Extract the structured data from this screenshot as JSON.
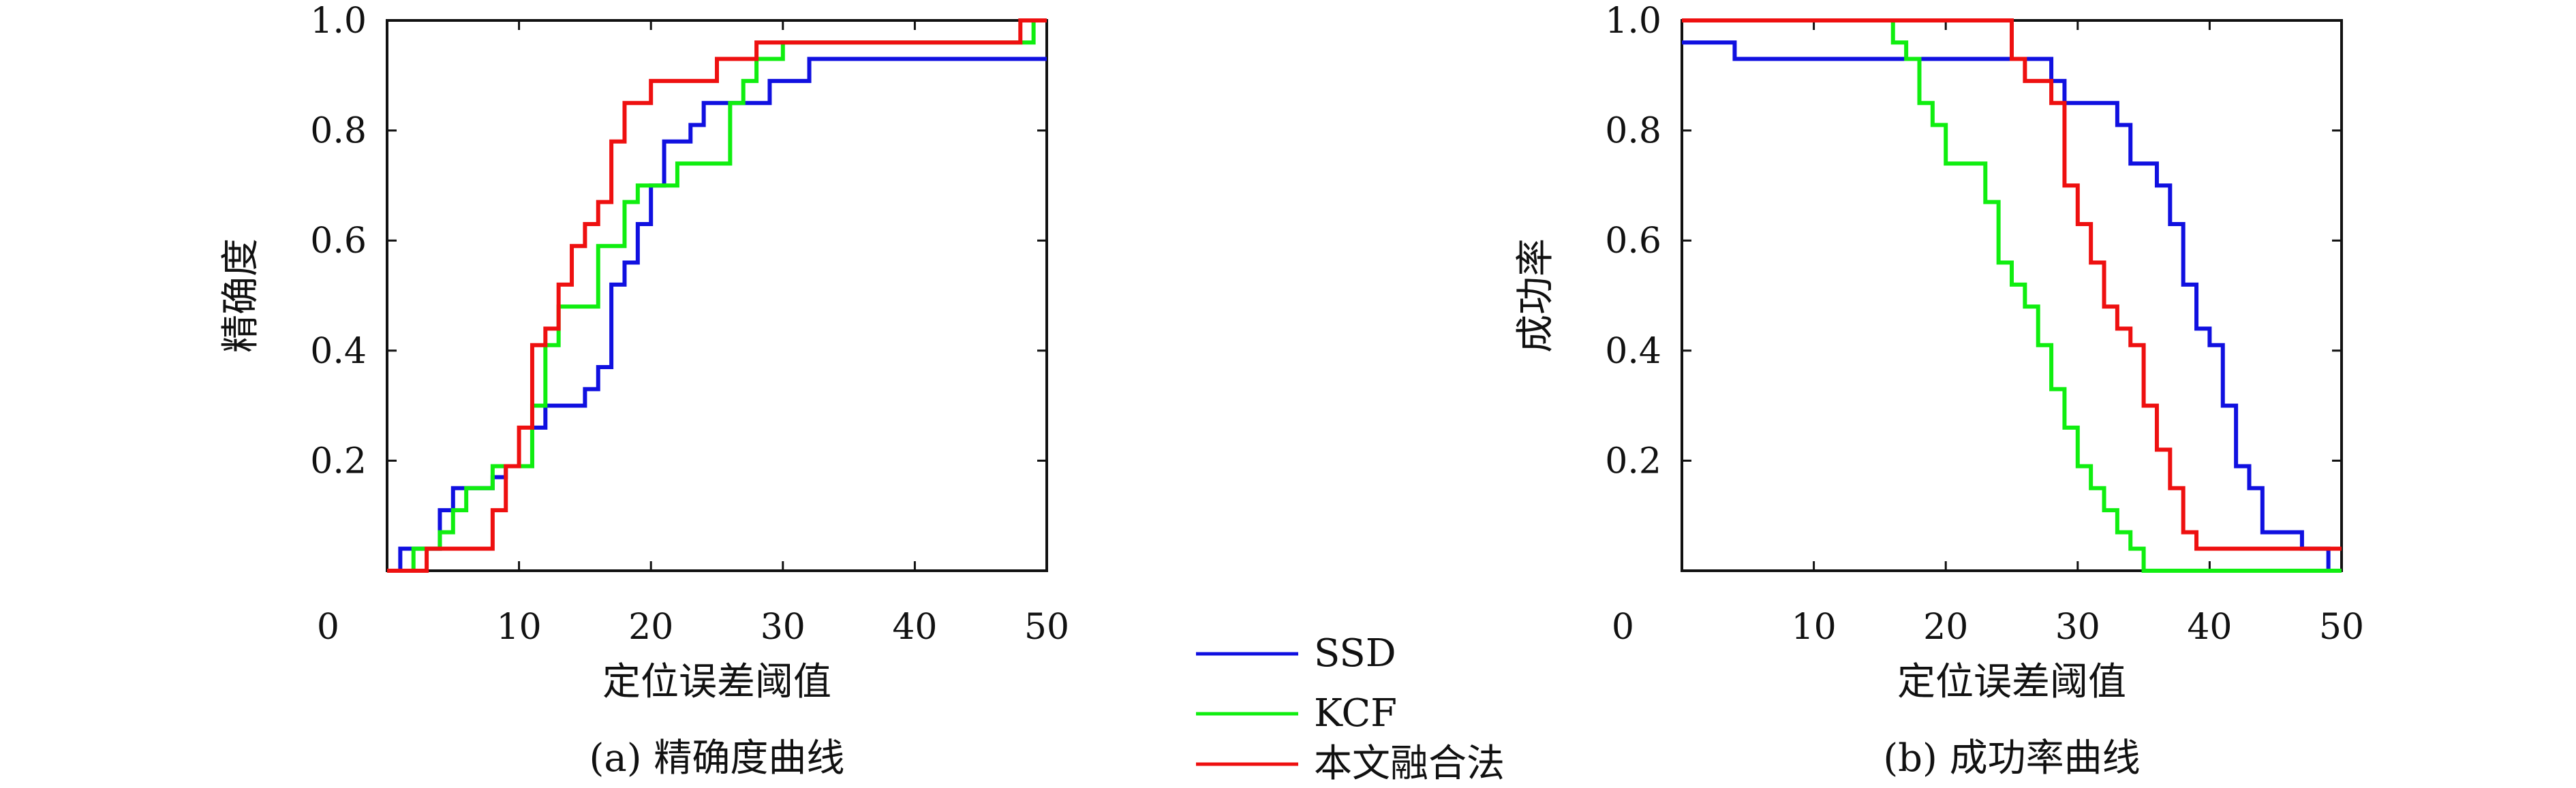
{
  "colors": {
    "ssd": "#1010e0",
    "kcf": "#10ee10",
    "ours": "#ee1010",
    "axis": "#111111"
  },
  "legend": {
    "items": [
      "SSD",
      "KCF",
      "本文融合法"
    ]
  },
  "chart_data": [
    {
      "type": "line",
      "caption": "(a) 精确度曲线",
      "xlabel": "定位误差阈值",
      "ylabel": "精确度",
      "xlim": [
        0,
        50
      ],
      "ylim": [
        0,
        1
      ],
      "xticks": [
        "0",
        "10",
        "20",
        "30",
        "40",
        "50"
      ],
      "yticks": [
        "0.2",
        "0.4",
        "0.6",
        "0.8",
        "1.0"
      ],
      "series": [
        {
          "name": "SSD",
          "color": "#1010e0",
          "x": [
            0,
            1,
            3,
            4,
            5,
            6,
            7,
            8,
            9,
            10,
            11,
            12,
            13,
            14,
            15,
            16,
            17,
            18,
            19,
            20,
            21,
            22,
            23,
            24,
            25,
            26,
            27,
            28,
            29,
            30,
            31,
            32,
            33,
            40,
            50
          ],
          "y": [
            0,
            0.04,
            0.04,
            0.11,
            0.15,
            0.15,
            0.15,
            0.17,
            0.19,
            0.19,
            0.26,
            0.3,
            0.3,
            0.3,
            0.33,
            0.37,
            0.52,
            0.56,
            0.63,
            0.7,
            0.78,
            0.78,
            0.81,
            0.85,
            0.85,
            0.85,
            0.85,
            0.85,
            0.89,
            0.89,
            0.89,
            0.93,
            0.93,
            0.93,
            0.93
          ]
        },
        {
          "name": "KCF",
          "color": "#10ee10",
          "x": [
            0,
            1,
            2,
            3,
            4,
            5,
            6,
            7,
            8,
            9,
            10,
            11,
            12,
            13,
            14,
            15,
            16,
            17,
            18,
            19,
            20,
            21,
            22,
            23,
            24,
            25,
            26,
            27,
            28,
            29,
            30,
            35,
            40,
            45,
            48,
            49,
            50
          ],
          "y": [
            0,
            0,
            0.04,
            0.04,
            0.07,
            0.11,
            0.15,
            0.15,
            0.19,
            0.19,
            0.19,
            0.3,
            0.41,
            0.48,
            0.48,
            0.48,
            0.59,
            0.59,
            0.67,
            0.7,
            0.7,
            0.7,
            0.74,
            0.74,
            0.74,
            0.74,
            0.85,
            0.89,
            0.93,
            0.93,
            0.96,
            0.96,
            0.96,
            0.96,
            0.96,
            1.0,
            1.0
          ]
        },
        {
          "name": "本文融合法",
          "color": "#ee1010",
          "x": [
            0,
            2,
            3,
            5,
            6,
            7,
            8,
            9,
            10,
            11,
            12,
            13,
            14,
            15,
            16,
            17,
            18,
            19,
            20,
            21,
            22,
            23,
            24,
            25,
            26,
            27,
            28,
            29,
            30,
            35,
            40,
            45,
            47,
            48,
            50
          ],
          "y": [
            0,
            0,
            0.04,
            0.04,
            0.04,
            0.04,
            0.11,
            0.19,
            0.26,
            0.41,
            0.44,
            0.52,
            0.59,
            0.63,
            0.67,
            0.78,
            0.85,
            0.85,
            0.89,
            0.89,
            0.89,
            0.89,
            0.89,
            0.93,
            0.93,
            0.93,
            0.96,
            0.96,
            0.96,
            0.96,
            0.96,
            0.96,
            0.96,
            1.0,
            1.0
          ]
        }
      ]
    },
    {
      "type": "line",
      "caption": "(b) 成功率曲线",
      "xlabel": "定位误差阈值",
      "ylabel": "成功率",
      "xlim": [
        0,
        50
      ],
      "ylim": [
        0,
        1
      ],
      "xticks": [
        "0",
        "10",
        "20",
        "30",
        "40",
        "50"
      ],
      "yticks": [
        "0.2",
        "0.4",
        "0.6",
        "0.8",
        "1.0"
      ],
      "series": [
        {
          "name": "SSD",
          "color": "#1010e0",
          "x": [
            0,
            2,
            3,
            4,
            10,
            20,
            25,
            26,
            27,
            28,
            29,
            30,
            31,
            32,
            33,
            34,
            35,
            36,
            37,
            38,
            39,
            40,
            41,
            42,
            43,
            44,
            45,
            46,
            47,
            48,
            49,
            50
          ],
          "y": [
            0.96,
            0.96,
            0.96,
            0.93,
            0.93,
            0.93,
            0.93,
            0.93,
            0.93,
            0.89,
            0.85,
            0.85,
            0.85,
            0.85,
            0.81,
            0.74,
            0.74,
            0.7,
            0.63,
            0.52,
            0.44,
            0.41,
            0.3,
            0.19,
            0.15,
            0.07,
            0.07,
            0.07,
            0.04,
            0.04,
            0,
            0
          ]
        },
        {
          "name": "KCF",
          "color": "#10ee10",
          "x": [
            0,
            10,
            15,
            16,
            17,
            18,
            19,
            20,
            21,
            22,
            23,
            24,
            25,
            26,
            27,
            28,
            29,
            30,
            31,
            32,
            33,
            34,
            35,
            40,
            50
          ],
          "y": [
            1.0,
            1.0,
            1.0,
            0.96,
            0.93,
            0.85,
            0.81,
            0.74,
            0.74,
            0.74,
            0.67,
            0.56,
            0.52,
            0.48,
            0.41,
            0.33,
            0.26,
            0.19,
            0.15,
            0.11,
            0.07,
            0.04,
            0,
            0,
            0
          ]
        },
        {
          "name": "本文融合法",
          "color": "#ee1010",
          "x": [
            0,
            10,
            20,
            23,
            24,
            25,
            26,
            27,
            28,
            29,
            30,
            31,
            32,
            33,
            34,
            35,
            36,
            37,
            38,
            39,
            40,
            45,
            50
          ],
          "y": [
            1.0,
            1.0,
            1.0,
            1.0,
            1.0,
            0.93,
            0.89,
            0.89,
            0.85,
            0.7,
            0.63,
            0.56,
            0.48,
            0.44,
            0.41,
            0.3,
            0.22,
            0.15,
            0.07,
            0.04,
            0.04,
            0.04,
            0.04
          ]
        }
      ]
    }
  ]
}
